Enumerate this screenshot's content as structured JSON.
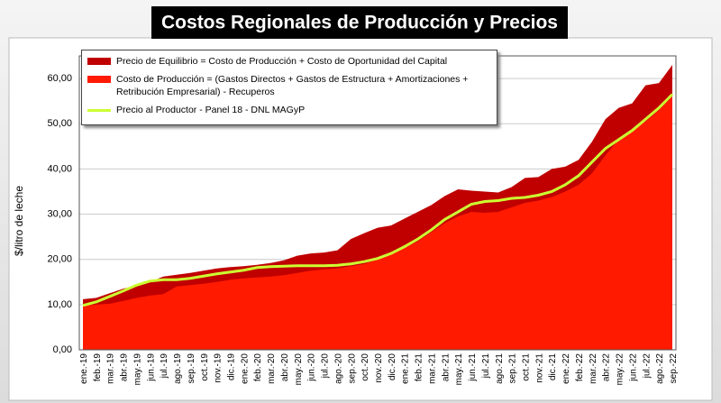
{
  "chart_data": {
    "type": "area",
    "title": "Costos Regionales de Producción y Precios",
    "y_label": "$/litro de leche",
    "categories": [
      "ene.-19",
      "feb.-19",
      "mar.-19",
      "abr.-19",
      "may.-19",
      "jun.-19",
      "jul.-19",
      "ago.-19",
      "sep.-19",
      "oct.-19",
      "nov.-19",
      "dic.-19",
      "ene.-20",
      "feb.-20",
      "mar.-20",
      "abr.-20",
      "may.-20",
      "jun.-20",
      "jul.-20",
      "ago.-20",
      "sep.-20",
      "oct.-20",
      "nov.-20",
      "dic.-20",
      "ene.-21",
      "feb.-21",
      "mar.-21",
      "abr.-21",
      "may.-21",
      "jun.-21",
      "jul.-21",
      "ago.-21",
      "sep.-21",
      "oct.-21",
      "nov.-21",
      "dic.-21",
      "ene.-22",
      "feb.-22",
      "mar.-22",
      "abr.-22",
      "may.-22",
      "jun.-22",
      "jul.-22",
      "ago.-22",
      "sep.-22"
    ],
    "series": [
      {
        "name": "Precio de Equilibrio = Costo de Producción + Costo de Oportunidad del Capital",
        "type": "area",
        "color": "#c00000",
        "values": [
          11.2,
          11.5,
          12.5,
          13.5,
          14.2,
          15.0,
          16.2,
          16.6,
          17.0,
          17.5,
          18.0,
          18.3,
          18.5,
          18.8,
          19.2,
          19.8,
          20.8,
          21.3,
          21.5,
          22.0,
          24.5,
          25.8,
          27.0,
          27.5,
          29.0,
          30.5,
          32.0,
          34.0,
          35.5,
          35.2,
          35.0,
          34.8,
          36.0,
          38.0,
          38.2,
          40.0,
          40.5,
          42.0,
          46.0,
          51.0,
          53.5,
          54.5,
          58.5,
          59.0,
          63.0
        ]
      },
      {
        "name": "Costo de Producción = (Gastos Directos + Gastos de Estructura + Amortizaciones + Retribución Empresarial) - Recuperos",
        "type": "area",
        "color": "#ff1a00",
        "values": [
          9.8,
          10.0,
          10.2,
          10.8,
          11.5,
          12.0,
          12.3,
          14.0,
          14.3,
          14.6,
          15.0,
          15.5,
          15.8,
          16.0,
          16.2,
          16.5,
          17.0,
          17.5,
          17.8,
          18.0,
          18.5,
          19.0,
          20.0,
          21.0,
          22.5,
          24.0,
          26.0,
          28.0,
          29.5,
          30.5,
          30.3,
          30.5,
          31.5,
          32.5,
          33.0,
          33.8,
          35.0,
          36.5,
          39.0,
          43.0,
          46.5,
          48.5,
          50.5,
          53.0,
          56.0
        ]
      },
      {
        "name": "Precio al Productor - Panel 18 - DNL MAGyP",
        "type": "line",
        "color": "#ccff33",
        "values": [
          9.8,
          10.6,
          11.8,
          13.0,
          14.3,
          15.2,
          15.5,
          15.5,
          15.8,
          16.3,
          16.8,
          17.2,
          17.6,
          18.2,
          18.4,
          18.5,
          18.6,
          18.6,
          18.6,
          18.7,
          19.0,
          19.5,
          20.2,
          21.3,
          22.8,
          24.5,
          26.5,
          28.8,
          30.5,
          32.2,
          32.8,
          33.0,
          33.5,
          33.7,
          34.2,
          35.0,
          36.5,
          38.5,
          41.5,
          44.5,
          46.5,
          48.5,
          51.0,
          53.5,
          56.5
        ]
      }
    ],
    "ylim": [
      0,
      65
    ],
    "yticks": [
      {
        "value": 0,
        "label": "0,00"
      },
      {
        "value": 10,
        "label": "10,00"
      },
      {
        "value": 20,
        "label": "20,00"
      },
      {
        "value": 30,
        "label": "30,00"
      },
      {
        "value": 40,
        "label": "40,00"
      },
      {
        "value": 50,
        "label": "50,00"
      },
      {
        "value": 60,
        "label": "60,00"
      }
    ],
    "grid": true
  }
}
